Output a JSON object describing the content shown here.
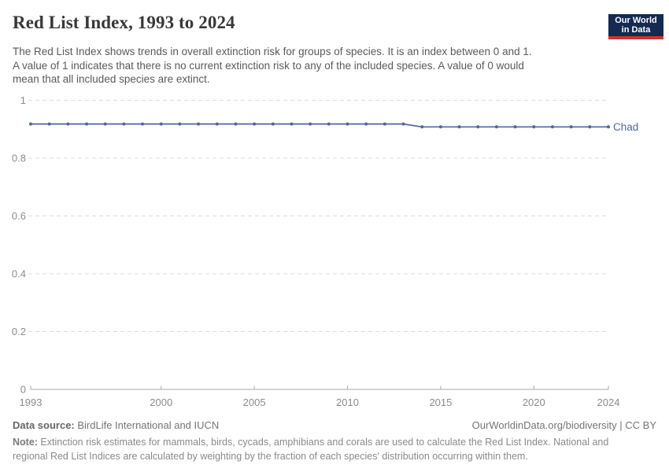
{
  "header": {
    "title": "Red List Index, 1993 to 2024",
    "logo": {
      "line1": "Our World",
      "line2": "in Data"
    }
  },
  "subtitle": {
    "lines": [
      "The Red List Index shows trends in overall extinction risk for groups of species. It is an index between 0 and 1.",
      "A value of 1 indicates that there is no current extinction risk to any of the included species. A value of 0 would",
      "mean that all included species are extinct."
    ]
  },
  "chart_data": {
    "type": "line",
    "title": "Red List Index, 1993 to 2024",
    "entity_label": "Chad",
    "x": [
      1993,
      1994,
      1995,
      1996,
      1997,
      1998,
      1999,
      2000,
      2001,
      2002,
      2003,
      2004,
      2005,
      2006,
      2007,
      2008,
      2009,
      2010,
      2011,
      2012,
      2013,
      2014,
      2015,
      2016,
      2017,
      2018,
      2019,
      2020,
      2021,
      2022,
      2023,
      2024
    ],
    "values": [
      0.918,
      0.918,
      0.918,
      0.918,
      0.918,
      0.918,
      0.918,
      0.918,
      0.918,
      0.918,
      0.918,
      0.918,
      0.918,
      0.918,
      0.918,
      0.918,
      0.918,
      0.918,
      0.918,
      0.918,
      0.918,
      0.908,
      0.908,
      0.908,
      0.908,
      0.908,
      0.908,
      0.908,
      0.908,
      0.908,
      0.908,
      0.908
    ],
    "xlabel": "",
    "ylabel": "",
    "xlim": [
      1993,
      2024
    ],
    "ylim": [
      0,
      1
    ],
    "xticks": [
      1993,
      2000,
      2005,
      2010,
      2015,
      2020,
      2024
    ],
    "xtick_labels": [
      "1993",
      "2000",
      "2005",
      "2010",
      "2015",
      "2020",
      "2024"
    ],
    "yticks": [
      0,
      0.2,
      0.4,
      0.6,
      0.8,
      1
    ],
    "ytick_labels": [
      "0",
      "0.2",
      "0.4",
      "0.6",
      "0.8",
      "1"
    ],
    "grid": "horizontal dashed",
    "legend_position": "line-end label"
  },
  "colors": {
    "line": "#4b68a4",
    "grid": "#dcdcdc",
    "axis": "#a9a9a9",
    "tick_text": "#8c8c8c",
    "logo_bg": "#142a52",
    "logo_bar": "#d0342c"
  },
  "footer": {
    "datasource_label": "Data source:",
    "datasource_value": " BirdLife International and IUCN",
    "url_text": "OurWorldinData.org/biodiversity | CC BY",
    "note_label": "Note:",
    "note_line1": " Extinction risk estimates for mammals, birds, cycads, amphibians and corals are used to calculate the Red List Index. National and",
    "note_line2": "regional Red List Indices are calculated by weighting by the fraction of each species' distribution occurring within them."
  }
}
